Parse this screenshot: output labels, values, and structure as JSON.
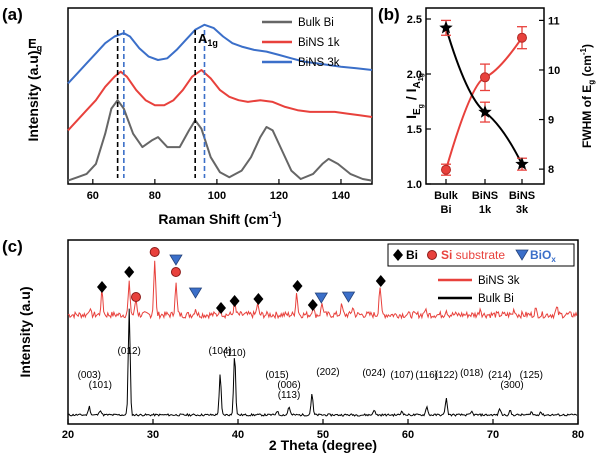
{
  "chart_data": [
    {
      "panel": "(a)",
      "type": "line",
      "xlabel": "Raman Shift (cm",
      "xlabel_sup": "-1",
      "xlabel_tail": ")",
      "ylabel": "Intensity (a.u)",
      "xlim": [
        52,
        150
      ],
      "xticks": [
        "60",
        "80",
        "100",
        "120",
        "140"
      ],
      "annotations": {
        "eg": "E",
        "eg_sub": "g",
        "a1g": "A",
        "a1g_sub": "1g"
      },
      "dashed_lines": {
        "bulk": [
          68,
          93
        ],
        "nanosheet": [
          70,
          96
        ]
      },
      "series": [
        {
          "name": "Bulk Bi",
          "color": "#666666",
          "points": [
            [
              52,
              0.02
            ],
            [
              55,
              0.04
            ],
            [
              58,
              0.06
            ],
            [
              61,
              0.12
            ],
            [
              64,
              0.3
            ],
            [
              66,
              0.45
            ],
            [
              68,
              0.5
            ],
            [
              70,
              0.45
            ],
            [
              73,
              0.3
            ],
            [
              76,
              0.22
            ],
            [
              79,
              0.26
            ],
            [
              81,
              0.28
            ],
            [
              84,
              0.22
            ],
            [
              88,
              0.22
            ],
            [
              91,
              0.32
            ],
            [
              93,
              0.38
            ],
            [
              95,
              0.33
            ],
            [
              98,
              0.16
            ],
            [
              101,
              0.07
            ],
            [
              104,
              0.04
            ],
            [
              108,
              0.08
            ],
            [
              111,
              0.16
            ],
            [
              114,
              0.28
            ],
            [
              116,
              0.34
            ],
            [
              118,
              0.32
            ],
            [
              121,
              0.2
            ],
            [
              124,
              0.08
            ],
            [
              127,
              0.03
            ],
            [
              131,
              0.06
            ],
            [
              134,
              0.12
            ],
            [
              136,
              0.15
            ],
            [
              139,
              0.12
            ],
            [
              143,
              0.06
            ],
            [
              147,
              0.03
            ],
            [
              150,
              0.02
            ]
          ]
        },
        {
          "name": "BiNS 1k",
          "color": "#e8413c",
          "points": [
            [
              52,
              0.32
            ],
            [
              55,
              0.38
            ],
            [
              58,
              0.44
            ],
            [
              61,
              0.5
            ],
            [
              64,
              0.58
            ],
            [
              67,
              0.64
            ],
            [
              69,
              0.67
            ],
            [
              71,
              0.64
            ],
            [
              74,
              0.56
            ],
            [
              77,
              0.5
            ],
            [
              80,
              0.47
            ],
            [
              83,
              0.47
            ],
            [
              86,
              0.5
            ],
            [
              89,
              0.56
            ],
            [
              92,
              0.64
            ],
            [
              95,
              0.68
            ],
            [
              98,
              0.63
            ],
            [
              101,
              0.56
            ],
            [
              104,
              0.52
            ],
            [
              107,
              0.5
            ],
            [
              110,
              0.49
            ],
            [
              114,
              0.5
            ],
            [
              118,
              0.49
            ],
            [
              122,
              0.46
            ],
            [
              126,
              0.44
            ],
            [
              130,
              0.43
            ],
            [
              134,
              0.43
            ],
            [
              138,
              0.43
            ],
            [
              142,
              0.42
            ],
            [
              146,
              0.41
            ],
            [
              150,
              0.4
            ]
          ]
        },
        {
          "name": "BiNS 3k",
          "color": "#3b6fc9",
          "points": [
            [
              52,
              0.6
            ],
            [
              55,
              0.66
            ],
            [
              58,
              0.72
            ],
            [
              61,
              0.78
            ],
            [
              64,
              0.84
            ],
            [
              67,
              0.88
            ],
            [
              70,
              0.9
            ],
            [
              72,
              0.88
            ],
            [
              75,
              0.81
            ],
            [
              78,
              0.76
            ],
            [
              81,
              0.74
            ],
            [
              84,
              0.75
            ],
            [
              87,
              0.8
            ],
            [
              90,
              0.86
            ],
            [
              93,
              0.92
            ],
            [
              96,
              0.95
            ],
            [
              99,
              0.93
            ],
            [
              102,
              0.88
            ],
            [
              105,
              0.84
            ],
            [
              108,
              0.82
            ],
            [
              112,
              0.8
            ],
            [
              116,
              0.79
            ],
            [
              120,
              0.77
            ],
            [
              124,
              0.75
            ],
            [
              128,
              0.73
            ],
            [
              132,
              0.72
            ],
            [
              136,
              0.71
            ],
            [
              140,
              0.7
            ],
            [
              145,
              0.69
            ],
            [
              150,
              0.68
            ]
          ]
        }
      ],
      "ylim": [
        0,
        1.05
      ]
    },
    {
      "panel": "(b)",
      "type": "scatter",
      "categories": [
        [
          "Bulk",
          "Bi"
        ],
        [
          "BiNS",
          "1k"
        ],
        [
          "BiNS",
          "3k"
        ]
      ],
      "left_axis": {
        "label_i": "I",
        "label_eg_sub": "E",
        "label_eg_subsub": "g",
        "label_slash": " / I",
        "label_a_sub": "A",
        "label_a_subsub": "1g",
        "ylim": [
          1.0,
          2.6
        ],
        "ticks": [
          "1.0",
          "1.5",
          "2.0",
          "2.5"
        ],
        "color": "#e8413c",
        "values": [
          1.13,
          1.97,
          2.33
        ],
        "errors": [
          0.05,
          0.12,
          0.1
        ]
      },
      "right_axis": {
        "label": "FWHM of E",
        "label_sub": "g",
        "label_unit": " (cm",
        "label_unit_sup": "-1",
        "label_close": ")",
        "ylim": [
          7.7,
          11.25
        ],
        "ticks": [
          "8",
          "9",
          "10",
          "11"
        ],
        "color": "#000000",
        "values": [
          10.85,
          9.15,
          8.1
        ],
        "errors": [
          0.15,
          0.2,
          0.12
        ]
      }
    },
    {
      "panel": "(c)",
      "type": "line",
      "xlabel": "2 Theta (degree)",
      "ylabel": "Intensity (a.u)",
      "xlim": [
        20,
        80
      ],
      "xticks": [
        "20",
        "30",
        "40",
        "50",
        "60",
        "70",
        "80"
      ],
      "legend": {
        "markers": [
          {
            "symbol": "diamond",
            "label": "Bi",
            "color": "#000000"
          },
          {
            "symbol": "circle",
            "label_a": "Si",
            "label_b": " substrate",
            "color": "#e8413c"
          },
          {
            "symbol": "triangle",
            "label": "BiO",
            "label_sub": "x",
            "color": "#3b6fc9"
          }
        ],
        "lines": [
          {
            "name": "BiNS 3k",
            "color": "#e8413c"
          },
          {
            "name": "Bulk Bi",
            "color": "#000000"
          }
        ]
      },
      "bins_peaks": [
        [
          22.5,
          0.05
        ],
        [
          24.0,
          0.18
        ],
        [
          27.2,
          0.24
        ],
        [
          28.0,
          0.12
        ],
        [
          30.2,
          0.42
        ],
        [
          32.7,
          0.24
        ],
        [
          35.0,
          0.05
        ],
        [
          37.9,
          0.07
        ],
        [
          39.6,
          0.09
        ],
        [
          42.3,
          0.08
        ],
        [
          46.9,
          0.17
        ],
        [
          48.8,
          0.06
        ],
        [
          49.9,
          0.09
        ],
        [
          52.2,
          0.07
        ],
        [
          53.5,
          0.06
        ],
        [
          56.7,
          0.22
        ],
        [
          62.0,
          0.04
        ],
        [
          64.5,
          0.04
        ],
        [
          68.5,
          0.05
        ],
        [
          72.5,
          0.04
        ],
        [
          75.0,
          0.04
        ],
        [
          77.5,
          0.05
        ]
      ],
      "bulk_peaks": [
        [
          22.5,
          0.08
        ],
        [
          23.8,
          0.05
        ],
        [
          27.2,
          1.0
        ],
        [
          37.9,
          0.38
        ],
        [
          39.6,
          0.58
        ],
        [
          44.6,
          0.04
        ],
        [
          46.0,
          0.08
        ],
        [
          48.7,
          0.2
        ],
        [
          56.0,
          0.05
        ],
        [
          59.3,
          0.04
        ],
        [
          62.2,
          0.08
        ],
        [
          64.5,
          0.16
        ],
        [
          67.5,
          0.03
        ],
        [
          70.8,
          0.06
        ],
        [
          72.0,
          0.04
        ],
        [
          74.5,
          0.03
        ],
        [
          75.6,
          0.03
        ]
      ],
      "markers": [
        {
          "symbol": "diamond",
          "x": 24.0
        },
        {
          "symbol": "diamond",
          "x": 27.2
        },
        {
          "symbol": "circle",
          "x": 28.0
        },
        {
          "symbol": "circle",
          "x": 30.2
        },
        {
          "symbol": "circle",
          "x": 32.7
        },
        {
          "symbol": "triangle",
          "x": 32.7
        },
        {
          "symbol": "triangle",
          "x": 35.0
        },
        {
          "symbol": "diamond",
          "x": 38.0
        },
        {
          "symbol": "diamond",
          "x": 39.6
        },
        {
          "symbol": "diamond",
          "x": 42.4
        },
        {
          "symbol": "diamond",
          "x": 47.0
        },
        {
          "symbol": "diamond",
          "x": 48.8
        },
        {
          "symbol": "triangle",
          "x": 49.8
        },
        {
          "symbol": "triangle",
          "x": 53.0
        },
        {
          "symbol": "diamond",
          "x": 56.8
        }
      ],
      "hkl_labels": [
        {
          "text": "(003)",
          "x": 22.5
        },
        {
          "text": "(101)",
          "x": 23.8
        },
        {
          "text": "(012)",
          "x": 27.2
        },
        {
          "text": "(104)",
          "x": 37.9
        },
        {
          "text": "(110)",
          "x": 39.6
        },
        {
          "text": "(015)",
          "x": 44.6
        },
        {
          "text": "(006)",
          "x": 46.0
        },
        {
          "text": "(113)",
          "x": 46.5
        },
        {
          "text": "(202)",
          "x": 48.7
        },
        {
          "text": "(024)",
          "x": 56.0
        },
        {
          "text": "(107)",
          "x": 59.3
        },
        {
          "text": "(116)",
          "x": 62.2
        },
        {
          "text": "(122)",
          "x": 64.5
        },
        {
          "text": "(018)",
          "x": 67.5
        },
        {
          "text": "(214)",
          "x": 70.8
        },
        {
          "text": "(300)",
          "x": 72.0
        },
        {
          "text": "(125)",
          "x": 74.5
        }
      ]
    }
  ]
}
